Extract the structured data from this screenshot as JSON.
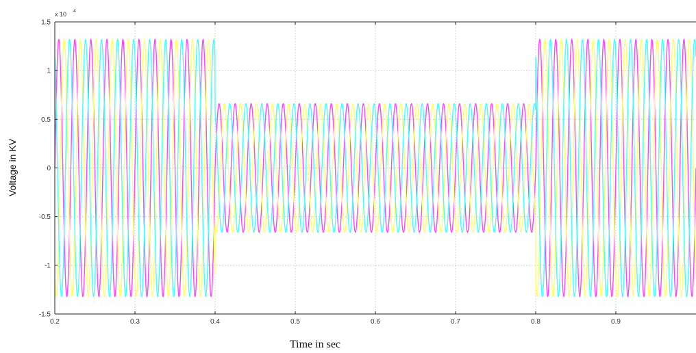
{
  "chart_data": {
    "type": "line",
    "xlabel": "Time in sec",
    "ylabel": "Voltage in KV",
    "y_exponent_label": "x 10",
    "y_exponent_power": "4",
    "xlim": [
      0.2,
      1.0
    ],
    "ylim": [
      -1.5,
      1.5
    ],
    "x_ticks": [
      "0.2",
      "0.3",
      "0.4",
      "0.5",
      "0.6",
      "0.7",
      "0.8",
      "0.9"
    ],
    "y_ticks": [
      "1.5",
      "1",
      "0.5",
      "0",
      "-0.5",
      "-1",
      "-1.5"
    ],
    "grid": true,
    "frequency_hz": 50,
    "segments": [
      {
        "x_start": 0.2,
        "x_end": 0.4,
        "amplitude": 1.32
      },
      {
        "x_start": 0.4,
        "x_end": 0.8,
        "amplitude": 0.66
      },
      {
        "x_start": 0.8,
        "x_end": 1.0,
        "amplitude": 1.32
      }
    ],
    "series": [
      {
        "phase_deg": 0,
        "color": "#ff44ff"
      },
      {
        "phase_deg": -120,
        "color": "#ffff66"
      },
      {
        "phase_deg": 120,
        "color": "#44ffff"
      }
    ]
  }
}
